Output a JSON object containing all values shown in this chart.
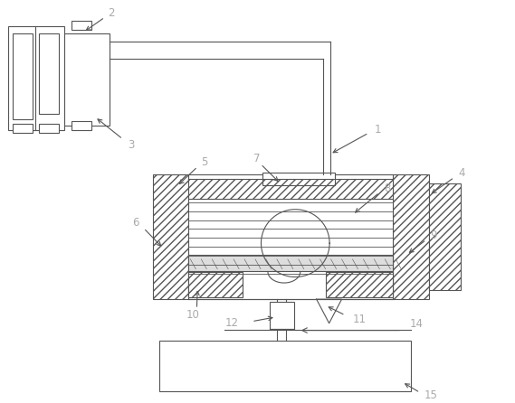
{
  "bg_color": "#ffffff",
  "lc": "#555555",
  "lbl": "#aaaaaa",
  "lw": 0.8,
  "figsize": [
    5.69,
    4.46
  ],
  "dpi": 100,
  "label_fs": 8.5
}
